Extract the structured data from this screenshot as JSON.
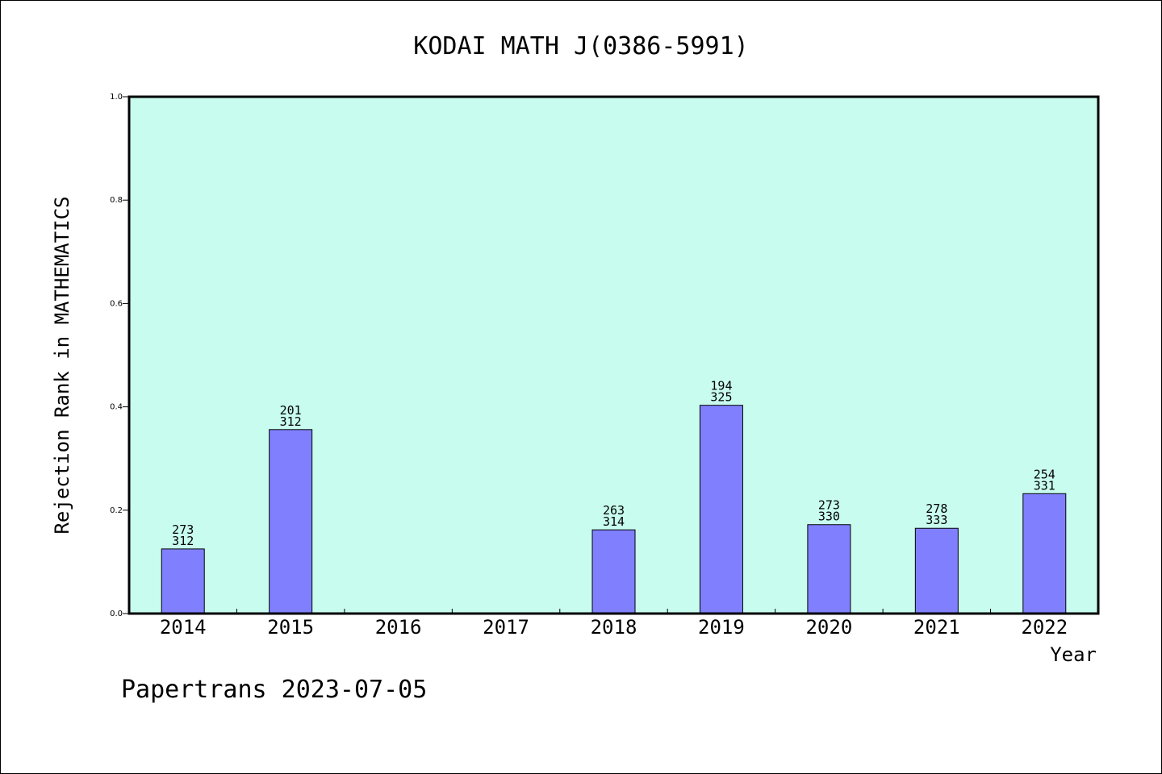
{
  "footer": "Papertrans 2023-07-05",
  "chart_data": {
    "type": "bar",
    "title": "KODAI MATH J(0386-5991)",
    "xlabel": "Year",
    "ylabel": "Rejection Rank in MATHEMATICS",
    "categories": [
      "2014",
      "2015",
      "2016",
      "2017",
      "2018",
      "2019",
      "2020",
      "2021",
      "2022"
    ],
    "values": [
      0.125,
      0.356,
      null,
      null,
      0.162,
      0.403,
      0.172,
      0.165,
      0.232
    ],
    "labels_top": [
      "273",
      "201",
      "",
      "",
      "263",
      "194",
      "273",
      "278",
      "254"
    ],
    "labels_bottom": [
      "312",
      "312",
      "",
      "",
      "314",
      "325",
      "330",
      "333",
      "331"
    ],
    "ylim": [
      0,
      1.0
    ],
    "yticks": [
      "0.0",
      "0.2",
      "0.4",
      "0.6",
      "0.8",
      "1.0"
    ],
    "grid": false,
    "colors": {
      "plot_background": "#c8fcee",
      "bar_fill": "#8080ff",
      "bar_stroke": "#000000"
    }
  }
}
